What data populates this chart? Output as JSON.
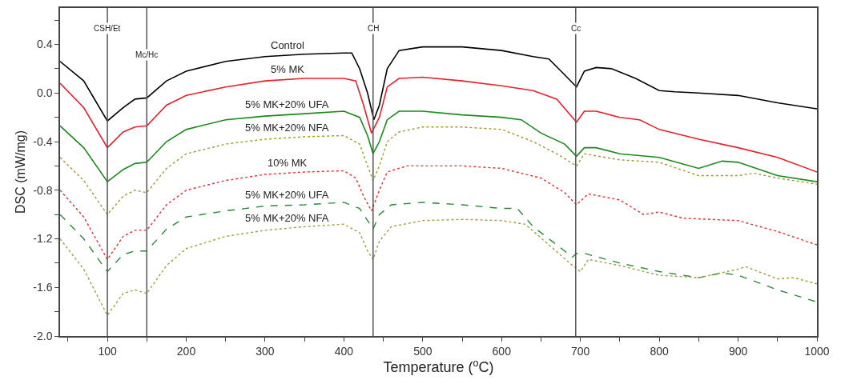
{
  "chart_data": {
    "type": "line",
    "xlabel": "Temperature ($^{o}$C)",
    "ylabel": "DSC (mW/mg)",
    "xlim": [
      40,
      1000
    ],
    "ylim": [
      -2.0,
      0.7
    ],
    "xticks": [
      {
        "value": 50,
        "label": null
      },
      100,
      {
        "value": 150,
        "label": null
      },
      200,
      {
        "value": 250,
        "label": null
      },
      300,
      {
        "value": 350,
        "label": null
      },
      400,
      {
        "value": 450,
        "label": null
      },
      500,
      {
        "value": 550,
        "label": null
      },
      600,
      {
        "value": 650,
        "label": null
      },
      700,
      {
        "value": 750,
        "label": null
      },
      800,
      {
        "value": 850,
        "label": null
      },
      900,
      {
        "value": 950,
        "label": null
      },
      1000
    ],
    "yticks": [
      {
        "value": -2.0,
        "label": "-2.0"
      },
      {
        "value": -1.8,
        "label": null
      },
      -1.6,
      {
        "value": -1.4,
        "label": null
      },
      -1.2,
      {
        "value": -1.0,
        "label": null
      },
      -0.8,
      {
        "value": -0.6,
        "label": null
      },
      -0.4,
      {
        "value": -0.2,
        "label": null
      },
      {
        "value": 0.0,
        "label": "0.0"
      },
      {
        "value": 0.2,
        "label": null
      },
      0.4,
      {
        "value": 0.6,
        "label": null
      }
    ],
    "legend": false,
    "marker": "none",
    "ref_lines": [
      {
        "axis": "x",
        "value": 100,
        "label": "CSH/Et",
        "color": "#555555"
      },
      {
        "axis": "x",
        "value": 150,
        "label": "Mc/Hc",
        "color": "#555555"
      },
      {
        "axis": "x",
        "value": 437,
        "label": "CH",
        "color": "#555555"
      },
      {
        "axis": "x",
        "value": 694,
        "label": "Cc",
        "color": "#555555"
      }
    ],
    "series": [
      {
        "name": "Control",
        "color": "#000000",
        "line_style": "solid",
        "x": [
          40,
          70,
          100,
          120,
          135,
          150,
          175,
          200,
          250,
          300,
          350,
          400,
          410,
          420,
          430,
          438,
          445,
          455,
          470,
          500,
          550,
          600,
          640,
          660,
          680,
          695,
          705,
          720,
          740,
          770,
          800,
          820,
          850,
          900,
          950,
          1000
        ],
        "values": [
          0.26,
          0.1,
          -0.23,
          -0.12,
          -0.05,
          -0.04,
          0.1,
          0.18,
          0.26,
          0.3,
          0.32,
          0.33,
          0.33,
          0.2,
          0.0,
          -0.22,
          -0.1,
          0.2,
          0.35,
          0.38,
          0.38,
          0.35,
          0.3,
          0.28,
          0.15,
          0.05,
          0.18,
          0.21,
          0.2,
          0.12,
          0.02,
          0.01,
          0.0,
          -0.02,
          -0.08,
          -0.13
        ]
      },
      {
        "name": "5% MK",
        "color": "#e8202a",
        "line_style": "solid",
        "x": [
          40,
          70,
          100,
          120,
          135,
          150,
          175,
          200,
          250,
          300,
          350,
          400,
          415,
          425,
          435,
          445,
          455,
          470,
          500,
          550,
          600,
          640,
          670,
          695,
          705,
          720,
          750,
          775,
          800,
          850,
          900,
          950,
          1000
        ],
        "values": [
          0.08,
          -0.12,
          -0.45,
          -0.32,
          -0.28,
          -0.27,
          -0.1,
          -0.02,
          0.05,
          0.1,
          0.12,
          0.12,
          0.1,
          -0.1,
          -0.33,
          -0.2,
          0.05,
          0.12,
          0.13,
          0.1,
          0.06,
          0.02,
          -0.05,
          -0.24,
          -0.15,
          -0.15,
          -0.2,
          -0.22,
          -0.3,
          -0.38,
          -0.45,
          -0.53,
          -0.65
        ]
      },
      {
        "name": "5% MK+20% UFA",
        "color": "#1a8a1a",
        "line_style": "solid",
        "x": [
          40,
          70,
          100,
          120,
          135,
          150,
          175,
          200,
          250,
          300,
          350,
          400,
          420,
          430,
          437,
          445,
          455,
          470,
          500,
          550,
          600,
          625,
          650,
          680,
          695,
          705,
          720,
          750,
          800,
          850,
          880,
          900,
          950,
          1000
        ],
        "values": [
          -0.27,
          -0.45,
          -0.73,
          -0.63,
          -0.58,
          -0.57,
          -0.4,
          -0.3,
          -0.22,
          -0.19,
          -0.17,
          -0.15,
          -0.2,
          -0.35,
          -0.5,
          -0.4,
          -0.22,
          -0.15,
          -0.15,
          -0.18,
          -0.2,
          -0.22,
          -0.33,
          -0.42,
          -0.52,
          -0.45,
          -0.45,
          -0.5,
          -0.53,
          -0.62,
          -0.56,
          -0.57,
          -0.68,
          -0.73
        ]
      },
      {
        "name": "5% MK+20% NFA",
        "color": "#a09a30",
        "line_style": "dotted",
        "x": [
          40,
          70,
          100,
          120,
          135,
          150,
          175,
          200,
          250,
          300,
          350,
          400,
          420,
          430,
          437,
          445,
          455,
          470,
          500,
          550,
          600,
          640,
          670,
          695,
          705,
          750,
          800,
          850,
          900,
          920,
          950,
          1000
        ],
        "values": [
          -0.53,
          -0.72,
          -1.0,
          -0.85,
          -0.8,
          -0.82,
          -0.62,
          -0.5,
          -0.42,
          -0.38,
          -0.36,
          -0.35,
          -0.42,
          -0.6,
          -0.72,
          -0.6,
          -0.4,
          -0.32,
          -0.28,
          -0.28,
          -0.3,
          -0.4,
          -0.5,
          -0.6,
          -0.5,
          -0.55,
          -0.57,
          -0.68,
          -0.68,
          -0.66,
          -0.7,
          -0.75
        ]
      },
      {
        "name": "10% MK",
        "color": "#e03030",
        "line_style": "dotted",
        "x": [
          40,
          70,
          100,
          120,
          135,
          150,
          175,
          200,
          250,
          300,
          350,
          400,
          415,
          425,
          435,
          445,
          455,
          480,
          550,
          600,
          650,
          680,
          695,
          710,
          750,
          780,
          800,
          830,
          900,
          950,
          1000
        ],
        "values": [
          -0.8,
          -1.02,
          -1.37,
          -1.18,
          -1.13,
          -1.13,
          -0.92,
          -0.8,
          -0.72,
          -0.67,
          -0.65,
          -0.64,
          -0.7,
          -0.85,
          -0.97,
          -0.8,
          -0.65,
          -0.6,
          -0.6,
          -0.62,
          -0.7,
          -0.82,
          -0.92,
          -0.83,
          -0.88,
          -1.0,
          -0.98,
          -1.03,
          -1.05,
          -1.14,
          -1.25
        ]
      },
      {
        "name": "5% MK+20% UFA",
        "color": "#2a8a3a",
        "line_style": "dashed",
        "x": [
          40,
          70,
          100,
          120,
          135,
          150,
          175,
          200,
          250,
          300,
          350,
          400,
          420,
          430,
          437,
          445,
          460,
          500,
          550,
          600,
          620,
          640,
          660,
          680,
          690,
          695,
          705,
          750,
          800,
          850,
          880,
          900,
          950,
          1000
        ],
        "values": [
          -1.0,
          -1.2,
          -1.47,
          -1.33,
          -1.3,
          -1.3,
          -1.12,
          -1.02,
          -0.97,
          -0.93,
          -0.92,
          -0.9,
          -0.95,
          -1.05,
          -1.12,
          -1.0,
          -0.92,
          -0.9,
          -0.92,
          -0.95,
          -0.95,
          -1.1,
          -1.2,
          -1.3,
          -1.35,
          -1.32,
          -1.32,
          -1.4,
          -1.47,
          -1.52,
          -1.48,
          -1.5,
          -1.62,
          -1.72
        ]
      },
      {
        "name": "5% MK+20% NFA",
        "color": "#a0a040",
        "line_style": "dotted",
        "x": [
          40,
          70,
          100,
          120,
          135,
          150,
          175,
          200,
          250,
          300,
          350,
          400,
          420,
          430,
          437,
          445,
          460,
          500,
          550,
          600,
          630,
          660,
          690,
          700,
          710,
          750,
          800,
          850,
          900,
          910,
          950,
          970,
          1000
        ],
        "values": [
          -1.2,
          -1.45,
          -1.83,
          -1.65,
          -1.62,
          -1.65,
          -1.42,
          -1.28,
          -1.18,
          -1.13,
          -1.1,
          -1.08,
          -1.15,
          -1.3,
          -1.37,
          -1.22,
          -1.1,
          -1.05,
          -1.04,
          -1.05,
          -1.08,
          -1.25,
          -1.42,
          -1.47,
          -1.37,
          -1.42,
          -1.5,
          -1.52,
          -1.45,
          -1.43,
          -1.53,
          -1.52,
          -1.57
        ]
      }
    ]
  }
}
